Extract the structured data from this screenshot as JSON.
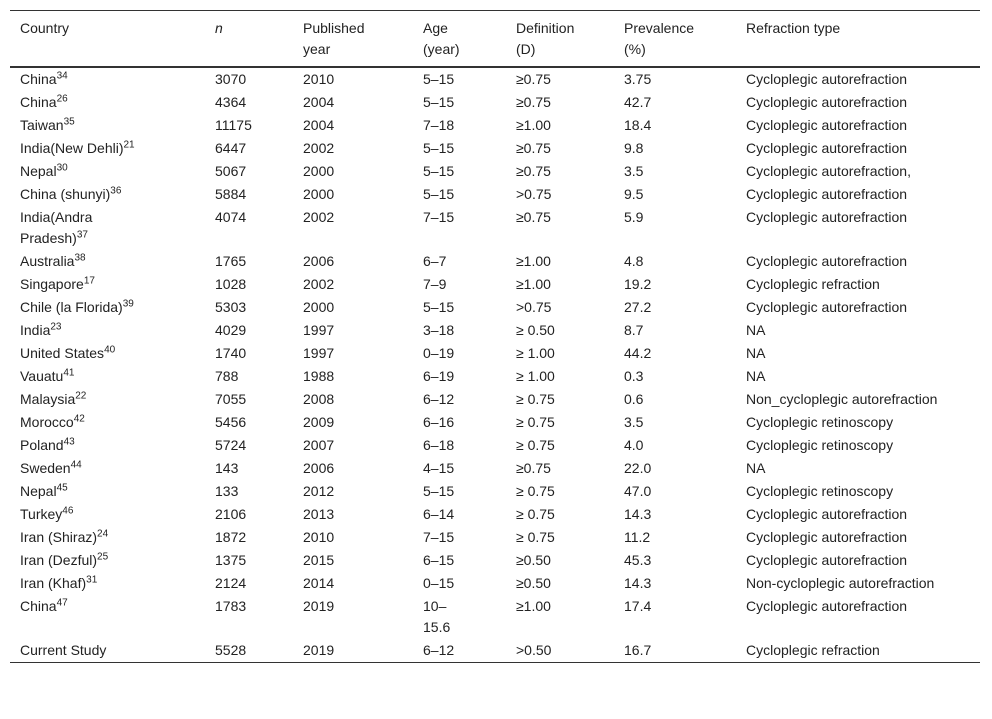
{
  "table": {
    "header": [
      "Country",
      "n",
      "Published year",
      "Age (year)",
      "Definition (D)",
      "Prevalence (%)",
      "Refraction type"
    ],
    "rows": [
      {
        "country": "China",
        "ref": "34",
        "n": "3070",
        "year": "2010",
        "age": "5–15",
        "def": "≥0.75",
        "prev": "3.75",
        "type": "Cycloplegic autorefraction"
      },
      {
        "country": "China",
        "ref": "26",
        "n": "4364",
        "year": "2004",
        "age": "5–15",
        "def": "≥0.75",
        "prev": "42.7",
        "type": "Cycloplegic autorefraction"
      },
      {
        "country": "Taiwan",
        "ref": "35",
        "n": "11175",
        "year": "2004",
        "age": "7–18",
        "def": "≥1.00",
        "prev": "18.4",
        "type": "Cycloplegic autorefraction"
      },
      {
        "country": "India(New Dehli)",
        "ref": "21",
        "n": "6447",
        "year": "2002",
        "age": "5–15",
        "def": "≥0.75",
        "prev": "9.8",
        "type": "Cycloplegic autorefraction"
      },
      {
        "country": "Nepal",
        "ref": "30",
        "n": "5067",
        "year": "2000",
        "age": "5–15",
        "def": "≥0.75",
        "prev": "3.5",
        "type": "Cycloplegic autorefraction,"
      },
      {
        "country": "China (shunyi)",
        "ref": "36",
        "n": "5884",
        "year": "2000",
        "age": "5–15",
        "def": ">0.75",
        "prev": "9.5",
        "type": "Cycloplegic autorefraction"
      },
      {
        "country": "India(Andra Pradesh)",
        "ref": "37",
        "n": "4074",
        "year": "2002",
        "age": "7–15",
        "def": "≥0.75",
        "prev": "5.9",
        "type": "Cycloplegic autorefraction"
      },
      {
        "country": "Australia",
        "ref": "38",
        "n": "1765",
        "year": "2006",
        "age": "6–7",
        "def": "≥1.00",
        "prev": "4.8",
        "type": "Cycloplegic autorefraction"
      },
      {
        "country": "Singapore",
        "ref": "17",
        "n": "1028",
        "year": "2002",
        "age": "7–9",
        "def": "≥1.00",
        "prev": "19.2",
        "type": "Cycloplegic refraction"
      },
      {
        "country": "Chile (la Florida)",
        "ref": "39",
        "n": "5303",
        "year": "2000",
        "age": "5–15",
        "def": ">0.75",
        "prev": "27.2",
        "type": "Cycloplegic autorefraction"
      },
      {
        "country": "India",
        "ref": "23",
        "n": "4029",
        "year": "1997",
        "age": "3–18",
        "def": "≥ 0.50",
        "prev": "8.7",
        "type": "NA"
      },
      {
        "country": "United States",
        "ref": "40",
        "n": "1740",
        "year": "1997",
        "age": "0–19",
        "def": "≥ 1.00",
        "prev": "44.2",
        "type": "NA"
      },
      {
        "country": "Vauatu",
        "ref": "41",
        "n": "788",
        "year": "1988",
        "age": "6–19",
        "def": "≥ 1.00",
        "prev": "0.3",
        "type": "NA"
      },
      {
        "country": "Malaysia",
        "ref": "22",
        "n": "7055",
        "year": "2008",
        "age": "6–12",
        "def": "≥ 0.75",
        "prev": "0.6",
        "type": "Non_cycloplegic autorefraction"
      },
      {
        "country": "Morocco",
        "ref": "42",
        "n": "5456",
        "year": "2009",
        "age": "6–16",
        "def": "≥ 0.75",
        "prev": "3.5",
        "type": "Cycloplegic retinoscopy"
      },
      {
        "country": "Poland",
        "ref": "43",
        "n": "5724",
        "year": "2007",
        "age": "6–18",
        "def": "≥ 0.75",
        "prev": "4.0",
        "type": "Cycloplegic retinoscopy"
      },
      {
        "country": "Sweden",
        "ref": "44",
        "n": "143",
        "year": "2006",
        "age": "4–15",
        "def": "≥0.75",
        "prev": "22.0",
        "type": "NA"
      },
      {
        "country": "Nepal",
        "ref": "45",
        "n": "133",
        "year": "2012",
        "age": "5–15",
        "def": "≥ 0.75",
        "prev": "47.0",
        "type": "Cycloplegic retinoscopy"
      },
      {
        "country": "Turkey",
        "ref": "46",
        "n": "2106",
        "year": "2013",
        "age": "6–14",
        "def": "≥ 0.75",
        "prev": "14.3",
        "type": "Cycloplegic autorefraction"
      },
      {
        "country": "Iran (Shiraz)",
        "ref": "24",
        "n": "1872",
        "year": "2010",
        "age": "7–15",
        "def": "≥ 0.75",
        "prev": "11.2",
        "type": "Cycloplegic autorefraction"
      },
      {
        "country": "Iran (Dezful)",
        "ref": "25",
        "n": "1375",
        "year": "2015",
        "age": "6–15",
        "def": "≥0.50",
        "prev": "45.3",
        "type": "Cycloplegic autorefraction"
      },
      {
        "country": "Iran (Khaf)",
        "ref": "31",
        "n": "2124",
        "year": "2014",
        "age": "0–15",
        "def": "≥0.50",
        "prev": "14.3",
        "type": "Non-cycloplegic autorefraction"
      },
      {
        "country": "China",
        "ref": "47",
        "n": "1783",
        "year": "2019",
        "age": "10–15.6",
        "def": "≥1.00",
        "prev": "17.4",
        "type": "Cycloplegic autorefraction"
      },
      {
        "country": "Current Study",
        "ref": null,
        "n": "5528",
        "year": "2019",
        "age": "6–12",
        "def": ">0.50",
        "prev": "16.7",
        "type": "Cycloplegic refraction"
      }
    ]
  }
}
